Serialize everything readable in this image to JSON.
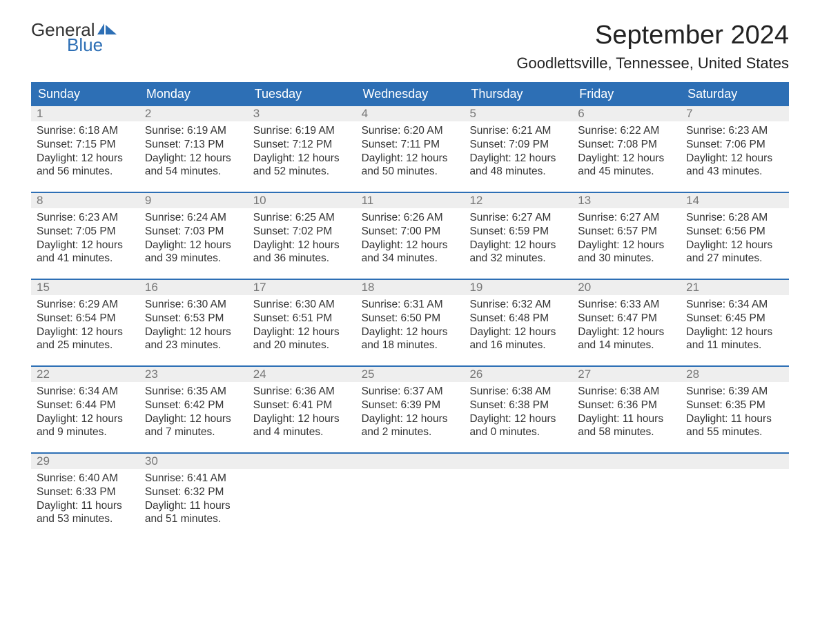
{
  "logo": {
    "text1": "General",
    "text2": "Blue",
    "sail_color": "#2d6fb5"
  },
  "title": "September 2024",
  "location": "Goodlettsville, Tennessee, United States",
  "colors": {
    "header_bg": "#2d6fb5",
    "header_fg": "#ffffff",
    "daynum_bg": "#eeeeee",
    "daynum_fg": "#777777",
    "text": "#333333",
    "row_border": "#2d6fb5",
    "page_bg": "#ffffff"
  },
  "daynames": [
    "Sunday",
    "Monday",
    "Tuesday",
    "Wednesday",
    "Thursday",
    "Friday",
    "Saturday"
  ],
  "weeks": [
    [
      {
        "n": "1",
        "sr": "6:18 AM",
        "ss": "7:15 PM",
        "dl": "12 hours and 56 minutes."
      },
      {
        "n": "2",
        "sr": "6:19 AM",
        "ss": "7:13 PM",
        "dl": "12 hours and 54 minutes."
      },
      {
        "n": "3",
        "sr": "6:19 AM",
        "ss": "7:12 PM",
        "dl": "12 hours and 52 minutes."
      },
      {
        "n": "4",
        "sr": "6:20 AM",
        "ss": "7:11 PM",
        "dl": "12 hours and 50 minutes."
      },
      {
        "n": "5",
        "sr": "6:21 AM",
        "ss": "7:09 PM",
        "dl": "12 hours and 48 minutes."
      },
      {
        "n": "6",
        "sr": "6:22 AM",
        "ss": "7:08 PM",
        "dl": "12 hours and 45 minutes."
      },
      {
        "n": "7",
        "sr": "6:23 AM",
        "ss": "7:06 PM",
        "dl": "12 hours and 43 minutes."
      }
    ],
    [
      {
        "n": "8",
        "sr": "6:23 AM",
        "ss": "7:05 PM",
        "dl": "12 hours and 41 minutes."
      },
      {
        "n": "9",
        "sr": "6:24 AM",
        "ss": "7:03 PM",
        "dl": "12 hours and 39 minutes."
      },
      {
        "n": "10",
        "sr": "6:25 AM",
        "ss": "7:02 PM",
        "dl": "12 hours and 36 minutes."
      },
      {
        "n": "11",
        "sr": "6:26 AM",
        "ss": "7:00 PM",
        "dl": "12 hours and 34 minutes."
      },
      {
        "n": "12",
        "sr": "6:27 AM",
        "ss": "6:59 PM",
        "dl": "12 hours and 32 minutes."
      },
      {
        "n": "13",
        "sr": "6:27 AM",
        "ss": "6:57 PM",
        "dl": "12 hours and 30 minutes."
      },
      {
        "n": "14",
        "sr": "6:28 AM",
        "ss": "6:56 PM",
        "dl": "12 hours and 27 minutes."
      }
    ],
    [
      {
        "n": "15",
        "sr": "6:29 AM",
        "ss": "6:54 PM",
        "dl": "12 hours and 25 minutes."
      },
      {
        "n": "16",
        "sr": "6:30 AM",
        "ss": "6:53 PM",
        "dl": "12 hours and 23 minutes."
      },
      {
        "n": "17",
        "sr": "6:30 AM",
        "ss": "6:51 PM",
        "dl": "12 hours and 20 minutes."
      },
      {
        "n": "18",
        "sr": "6:31 AM",
        "ss": "6:50 PM",
        "dl": "12 hours and 18 minutes."
      },
      {
        "n": "19",
        "sr": "6:32 AM",
        "ss": "6:48 PM",
        "dl": "12 hours and 16 minutes."
      },
      {
        "n": "20",
        "sr": "6:33 AM",
        "ss": "6:47 PM",
        "dl": "12 hours and 14 minutes."
      },
      {
        "n": "21",
        "sr": "6:34 AM",
        "ss": "6:45 PM",
        "dl": "12 hours and 11 minutes."
      }
    ],
    [
      {
        "n": "22",
        "sr": "6:34 AM",
        "ss": "6:44 PM",
        "dl": "12 hours and 9 minutes."
      },
      {
        "n": "23",
        "sr": "6:35 AM",
        "ss": "6:42 PM",
        "dl": "12 hours and 7 minutes."
      },
      {
        "n": "24",
        "sr": "6:36 AM",
        "ss": "6:41 PM",
        "dl": "12 hours and 4 minutes."
      },
      {
        "n": "25",
        "sr": "6:37 AM",
        "ss": "6:39 PM",
        "dl": "12 hours and 2 minutes."
      },
      {
        "n": "26",
        "sr": "6:38 AM",
        "ss": "6:38 PM",
        "dl": "12 hours and 0 minutes."
      },
      {
        "n": "27",
        "sr": "6:38 AM",
        "ss": "6:36 PM",
        "dl": "11 hours and 58 minutes."
      },
      {
        "n": "28",
        "sr": "6:39 AM",
        "ss": "6:35 PM",
        "dl": "11 hours and 55 minutes."
      }
    ],
    [
      {
        "n": "29",
        "sr": "6:40 AM",
        "ss": "6:33 PM",
        "dl": "11 hours and 53 minutes."
      },
      {
        "n": "30",
        "sr": "6:41 AM",
        "ss": "6:32 PM",
        "dl": "11 hours and 51 minutes."
      },
      null,
      null,
      null,
      null,
      null
    ]
  ],
  "labels": {
    "sunrise": "Sunrise:",
    "sunset": "Sunset:",
    "daylight": "Daylight:"
  }
}
